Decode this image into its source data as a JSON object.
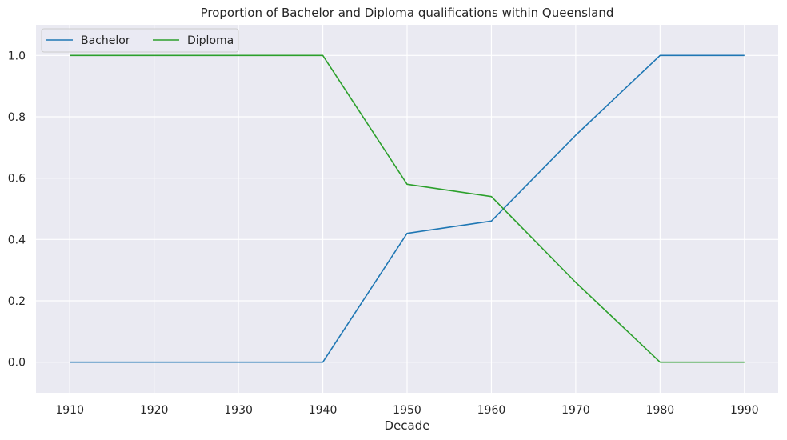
{
  "chart_data": {
    "type": "line",
    "title": "Proportion of Bachelor and Diploma qualifications within Queensland",
    "xlabel": "Decade",
    "ylabel": "",
    "x": [
      1910,
      1920,
      1930,
      1940,
      1950,
      1960,
      1970,
      1980,
      1990
    ],
    "series": [
      {
        "name": "Bachelor",
        "color": "#1f77b4",
        "values": [
          0.0,
          0.0,
          0.0,
          0.0,
          0.42,
          0.46,
          0.74,
          1.0,
          1.0
        ]
      },
      {
        "name": "Diploma",
        "color": "#2ca02c",
        "values": [
          1.0,
          1.0,
          1.0,
          1.0,
          0.58,
          0.54,
          0.26,
          0.0,
          0.0
        ]
      }
    ],
    "xticks": [
      "1910",
      "1920",
      "1930",
      "1940",
      "1950",
      "1960",
      "1970",
      "1980",
      "1990"
    ],
    "yticks": [
      "0.0",
      "0.2",
      "0.4",
      "0.6",
      "0.8",
      "1.0"
    ],
    "xlim": [
      1906,
      1994
    ],
    "ylim": [
      -0.1,
      1.1
    ],
    "grid": true,
    "legend_position": "top-left",
    "legend_columns": 2,
    "background_color": "#eaeaf2",
    "grid_color": "#ffffff"
  }
}
